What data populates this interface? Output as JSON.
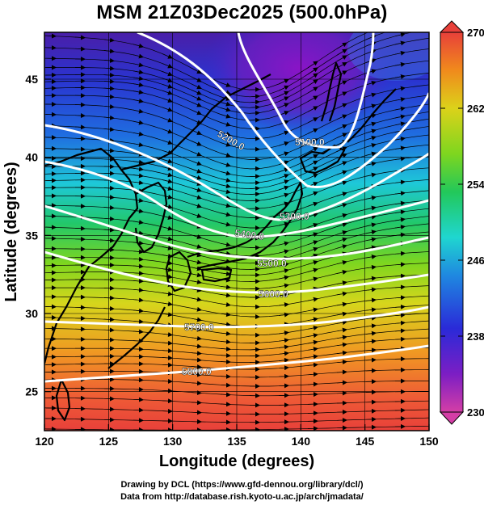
{
  "title": "MSM 21Z03Dec2025 (500.0hPa)",
  "xlabel": "Longitude (degrees)",
  "ylabel": "Latitude  (degrees)",
  "x_ticks": [
    "120",
    "125",
    "130",
    "135",
    "140",
    "145",
    "150"
  ],
  "y_ticks": [
    "25",
    "30",
    "35",
    "40",
    "45"
  ],
  "colorbar": {
    "min": "230",
    "max": "270",
    "ticks": [
      "270",
      "262",
      "254",
      "246",
      "238",
      "230"
    ],
    "colors": [
      "#d43ea6",
      "#7c1ec4",
      "#2a2ad8",
      "#1f88e0",
      "#1fd6d0",
      "#22c85a",
      "#7ed61f",
      "#dcd21a",
      "#f08a1c",
      "#e8403a"
    ]
  },
  "contours": [
    {
      "label": "5100.0"
    },
    {
      "label": "5200.0"
    },
    {
      "label": "5300.0"
    },
    {
      "label": "5400.0"
    },
    {
      "label": "5500.0"
    },
    {
      "label": "5600.0"
    },
    {
      "label": "5700.0"
    },
    {
      "label": "5800.0"
    }
  ],
  "credits": {
    "line1": "Drawing by DCL (https://www.gfd-dennou.org/library/dcl/)",
    "line2": "Data from http://database.rish.kyoto-u.ac.jp/arch/jmadata/"
  }
}
